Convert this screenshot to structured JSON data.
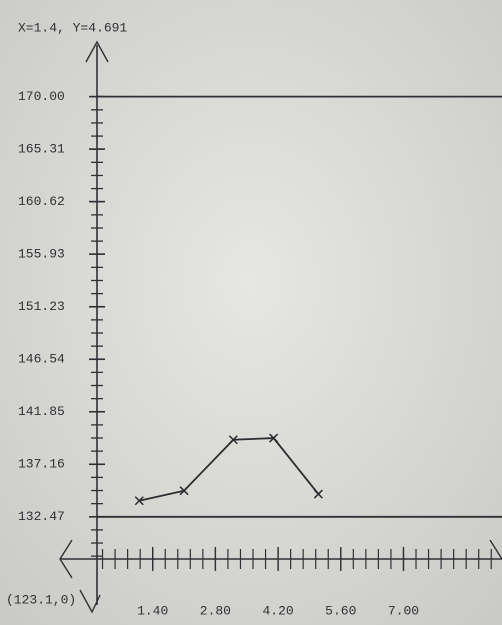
{
  "chart_data": {
    "type": "line",
    "annotations": [
      "X=1.4, Y=4.691",
      "(123.1,0)"
    ],
    "x": [
      1.1,
      2.1,
      3.2,
      4.1,
      5.1
    ],
    "series": [
      {
        "color": "#2a2c30",
        "values": [
          133.9,
          134.8,
          139.35,
          139.5,
          134.5
        ]
      }
    ],
    "xlim": [
      0,
      9.2
    ],
    "ylim": [
      128.7,
      173
    ],
    "xticks": [
      {
        "value": 1.4,
        "label": "1.40"
      },
      {
        "value": 2.8,
        "label": "2.80"
      },
      {
        "value": 4.2,
        "label": "4.20"
      },
      {
        "value": 5.6,
        "label": "5.60"
      },
      {
        "value": 7.0,
        "label": "7.00"
      }
    ],
    "yticks": [
      {
        "value": 170,
        "label": "170.00"
      },
      165.31,
      160.62,
      155.93,
      151.23,
      146.54,
      141.85,
      137.16,
      132.47
    ],
    "limit_lines": [
      170,
      132.47
    ]
  }
}
